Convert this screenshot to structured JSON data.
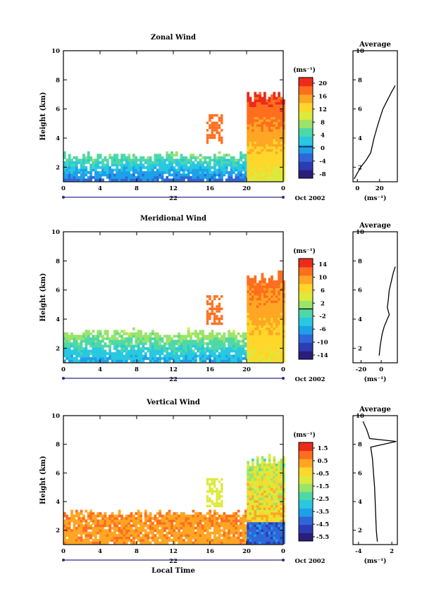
{
  "chart_data": [
    {
      "type": "heatmap",
      "title": "Zonal Wind",
      "ylabel": "Height (km)",
      "xlim": [
        0,
        24
      ],
      "ylim": [
        1,
        10
      ],
      "xticks": [
        "0",
        "4",
        "8",
        "12",
        "16",
        "20",
        "0"
      ],
      "yticks": [
        "2",
        "4",
        "6",
        "8",
        "10"
      ],
      "date_label": "22",
      "date_suffix": "Oct 2002",
      "colorbar": {
        "unit": "(ms⁻¹)",
        "ticks": [
          "20",
          "16",
          "12",
          "8",
          "4",
          "0",
          "-4",
          "-8"
        ],
        "range": [
          -10,
          22
        ]
      },
      "field": {
        "low_value": -3,
        "high_value": 6,
        "top_km": 3.0,
        "storm_start": 19.8,
        "storm_top": 7.2,
        "storm_value": 20
      },
      "average": {
        "title": "Average",
        "xticks": [
          "0",
          "20"
        ],
        "xlim": [
          -4,
          36
        ],
        "yticks": [
          "2",
          "4",
          "6",
          "8",
          "10"
        ],
        "xlabel": "(ms⁻¹)",
        "profile": [
          [
            1.2,
            -3
          ],
          [
            2.0,
            3
          ],
          [
            2.5,
            8
          ],
          [
            3.0,
            12
          ],
          [
            4.0,
            15
          ],
          [
            4.8,
            18
          ],
          [
            5.3,
            20
          ],
          [
            6.0,
            23
          ],
          [
            6.6,
            27
          ],
          [
            7.2,
            31
          ],
          [
            7.6,
            34
          ]
        ]
      }
    },
    {
      "type": "heatmap",
      "title": "Meridional Wind",
      "ylabel": "Height (km)",
      "xlim": [
        0,
        24
      ],
      "ylim": [
        1,
        10
      ],
      "xticks": [
        "0",
        "4",
        "8",
        "12",
        "16",
        "20",
        "0"
      ],
      "yticks": [
        "2",
        "4",
        "6",
        "8",
        "10"
      ],
      "date_label": "22",
      "date_suffix": "Oct 2002",
      "colorbar": {
        "unit": "(ms⁻¹)",
        "ticks": [
          "14",
          "10",
          "6",
          "2",
          "-2",
          "-6",
          "-10",
          "-14"
        ],
        "range": [
          -16,
          16
        ]
      },
      "field": {
        "low_value": -6,
        "high_value": 2,
        "top_km": 3.3,
        "storm_start": 19.8,
        "storm_top": 7.2,
        "storm_value": 12
      },
      "average": {
        "title": "Average",
        "xticks": [
          "-20",
          "0"
        ],
        "xlim": [
          -28,
          16
        ],
        "yticks": [
          "2",
          "4",
          "6",
          "8",
          "10"
        ],
        "xlabel": "(ms⁻¹)",
        "profile": [
          [
            1.5,
            -2
          ],
          [
            2.2,
            -1
          ],
          [
            3.0,
            1
          ],
          [
            3.5,
            3
          ],
          [
            4.0,
            6
          ],
          [
            4.3,
            8
          ],
          [
            4.8,
            6
          ],
          [
            5.3,
            7
          ],
          [
            6.0,
            8
          ],
          [
            6.6,
            10
          ],
          [
            7.2,
            12
          ],
          [
            7.6,
            14
          ]
        ]
      }
    },
    {
      "type": "heatmap",
      "title": "Vertical Wind",
      "ylabel": "Height (km)",
      "xlabel": "Local Time",
      "xlim": [
        0,
        24
      ],
      "ylim": [
        1,
        10
      ],
      "xticks": [
        "0",
        "4",
        "8",
        "12",
        "16",
        "20",
        "0"
      ],
      "yticks": [
        "2",
        "4",
        "6",
        "8",
        "10"
      ],
      "date_label": "22",
      "date_suffix": "Oct 2002",
      "colorbar": {
        "unit": "(ms⁻¹)",
        "ticks": [
          "1.5",
          "0.5",
          "-0.5",
          "-1.5",
          "-2.5",
          "-3.5",
          "-4.5",
          "-5.5"
        ],
        "range": [
          -6.2,
          2.0
        ]
      },
      "field": {
        "low_value": 0.4,
        "high_value": 0.6,
        "top_km": 3.4,
        "storm_start": 19.8,
        "storm_top": 7.2,
        "storm_value": -1.3
      },
      "average": {
        "title": "Average",
        "xticks": [
          "-4",
          "2"
        ],
        "xlim": [
          -5,
          3
        ],
        "yticks": [
          "2",
          "4",
          "6",
          "8",
          "10"
        ],
        "xlabel": "(ms⁻¹)",
        "profile": [
          [
            1.2,
            -0.6
          ],
          [
            2.0,
            -0.8
          ],
          [
            3.0,
            -0.9
          ],
          [
            4.0,
            -1.0
          ],
          [
            5.0,
            -1.1
          ],
          [
            6.0,
            -1.3
          ],
          [
            7.0,
            -1.5
          ],
          [
            7.8,
            -1.8
          ],
          [
            8.2,
            2.8
          ],
          [
            8.4,
            -2.0
          ],
          [
            9.0,
            -2.5
          ],
          [
            9.6,
            -3.2
          ]
        ]
      }
    }
  ]
}
